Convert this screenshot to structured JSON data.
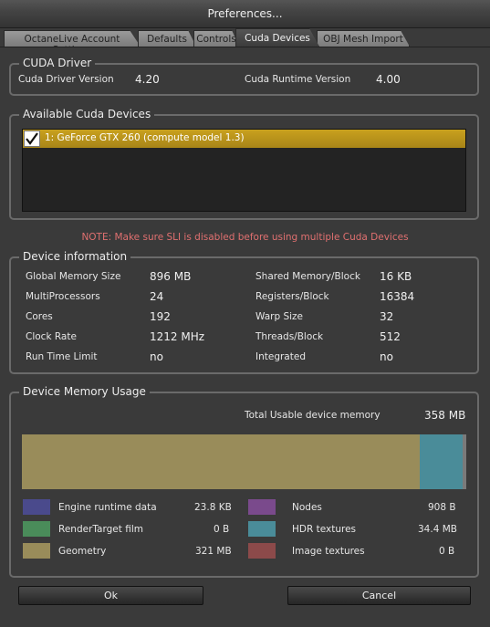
{
  "window": {
    "title": "Preferences..."
  },
  "tabs": [
    {
      "label": "OctaneLive Account Settings",
      "active": false
    },
    {
      "label": "Defaults",
      "active": false
    },
    {
      "label": "Controls",
      "active": false
    },
    {
      "label": "Cuda Devices",
      "active": true
    },
    {
      "label": "OBJ Mesh Import",
      "active": false
    }
  ],
  "driver": {
    "legend": "CUDA Driver",
    "driver_label": "Cuda Driver Version",
    "driver_value": "4.20",
    "runtime_label": "Cuda Runtime Version",
    "runtime_value": "4.00"
  },
  "devices": {
    "legend": "Available Cuda Devices",
    "items": [
      {
        "label": "1: GeForce GTX 260 (compute model 1.3)",
        "checked": true
      }
    ]
  },
  "note": "NOTE: Make sure SLI is disabled before using multiple Cuda Devices",
  "info": {
    "legend": "Device information",
    "left": [
      {
        "label": "Global Memory Size",
        "value": "896 MB"
      },
      {
        "label": "MultiProcessors",
        "value": "24"
      },
      {
        "label": "Cores",
        "value": "192"
      },
      {
        "label": "Clock Rate",
        "value": "1212 MHz"
      },
      {
        "label": "Run Time Limit",
        "value": "no"
      }
    ],
    "right": [
      {
        "label": "Shared Memory/Block",
        "value": "16 KB"
      },
      {
        "label": "Registers/Block",
        "value": "16384"
      },
      {
        "label": "Warp Size",
        "value": "32"
      },
      {
        "label": "Threads/Block",
        "value": "512"
      },
      {
        "label": "Integrated",
        "value": "no"
      }
    ]
  },
  "memory": {
    "legend": "Device Memory Usage",
    "total_label": "Total Usable device memory",
    "total_value": "358 MB",
    "usage_fractions": {
      "geometry": 0.895,
      "hdr_textures": 0.096,
      "other": 0.009
    },
    "legend_items": [
      {
        "label": "Engine runtime data",
        "value": "23.8 KB",
        "color": "#4a4a8c"
      },
      {
        "label": "Nodes",
        "value": "908 B",
        "color": "#7a4a8c"
      },
      {
        "label": "RenderTarget film",
        "value": "0 B",
        "color": "#4a8c5a"
      },
      {
        "label": "HDR textures",
        "value": "34.4 MB",
        "color": "#4a8c99"
      },
      {
        "label": "Geometry",
        "value": "321 MB",
        "color": "#998c5a"
      },
      {
        "label": "Image textures",
        "value": "0 B",
        "color": "#8c4a4a"
      }
    ]
  },
  "buttons": {
    "ok": "Ok",
    "cancel": "Cancel"
  }
}
